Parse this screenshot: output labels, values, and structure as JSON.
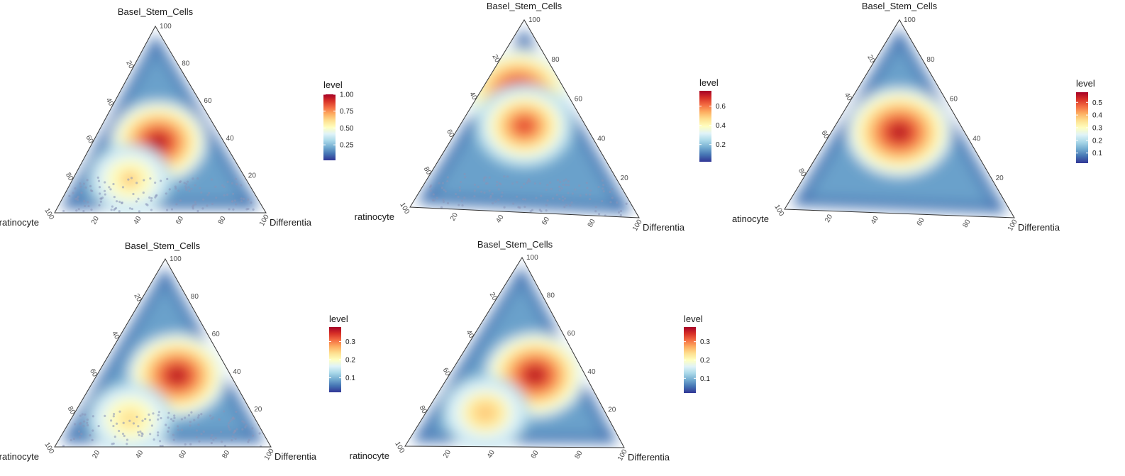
{
  "chart_data": [
    {
      "type": "ternary-density",
      "title": "Basel_Stem_Cells",
      "axes": {
        "top": "Basel_Stem_Cells",
        "left": "Keratinocyte",
        "right": "Differentiated"
      },
      "left_label_visible": "ratinocyte",
      "right_label_visible": "Differentia",
      "ticks": [
        20,
        40,
        60,
        80,
        100
      ],
      "legend": {
        "title": "level",
        "range": [
          0.02,
          1.0
        ],
        "ticks": [
          0.25,
          0.5,
          0.75,
          1.0
        ],
        "tick_labels": [
          "0.25",
          "0.50",
          "0.75",
          "1.00"
        ]
      },
      "peaks": [
        {
          "bottom_pct": 50,
          "top_pct": 38,
          "level": 1.0
        },
        {
          "bottom_pct": 33,
          "top_pct": 18,
          "level": 0.55
        }
      ],
      "scatter": true
    },
    {
      "type": "ternary-density",
      "title": "Basel_Stem_Cells",
      "axes": {
        "top": "Basel_Stem_Cells",
        "left": "Keratinocyte",
        "right": "Differentiated"
      },
      "left_label_visible": "ratinocyte",
      "right_label_visible": "Differentia",
      "ticks": [
        20,
        40,
        60,
        80,
        100
      ],
      "legend": {
        "title": "level",
        "range": [
          0.02,
          0.76
        ],
        "ticks": [
          0.2,
          0.4,
          0.6
        ],
        "tick_labels": [
          "0.2",
          "0.4",
          "0.6"
        ]
      },
      "peaks": [
        {
          "bottom_pct": 43,
          "top_pct": 62,
          "level": 0.76
        },
        {
          "bottom_pct": 50,
          "top_pct": 45,
          "level": 0.62
        }
      ],
      "scatter": true
    },
    {
      "type": "ternary-density",
      "title": "Basel_Stem_Cells",
      "axes": {
        "top": "Basel_Stem_Cells",
        "left": "Keratinocyte",
        "right": "Differentiated"
      },
      "left_label_visible": "atinocyte",
      "right_label_visible": "Differentia",
      "ticks": [
        20,
        40,
        60,
        80,
        100
      ],
      "legend": {
        "title": "level",
        "range": [
          0.02,
          0.58
        ],
        "ticks": [
          0.1,
          0.2,
          0.3,
          0.4,
          0.5
        ],
        "tick_labels": [
          "0.1",
          "0.2",
          "0.3",
          "0.4",
          "0.5"
        ]
      },
      "peaks": [
        {
          "bottom_pct": 50,
          "top_pct": 42,
          "level": 0.58
        }
      ],
      "scatter": false
    },
    {
      "type": "ternary-density",
      "title": "Basel_Stem_Cells",
      "axes": {
        "top": "Basel_Stem_Cells",
        "left": "Keratinocyte",
        "right": "Differentiated"
      },
      "left_label_visible": "ratinocyte",
      "right_label_visible": "Differentia",
      "ticks": [
        20,
        40,
        60,
        80,
        100
      ],
      "legend": {
        "title": "level",
        "range": [
          0.02,
          0.38
        ],
        "ticks": [
          0.1,
          0.2,
          0.3
        ],
        "tick_labels": [
          "0.1",
          "0.2",
          "0.3"
        ]
      },
      "peaks": [
        {
          "bottom_pct": 60,
          "top_pct": 38,
          "level": 0.38
        },
        {
          "bottom_pct": 32,
          "top_pct": 15,
          "level": 0.2
        }
      ],
      "scatter": true
    },
    {
      "type": "ternary-density",
      "title": "Basel_Stem_Cells",
      "axes": {
        "top": "Basel_Stem_Cells",
        "left": "Keratinocyte",
        "right": "Differentiated"
      },
      "left_label_visible": "ratinocyte",
      "right_label_visible": "Differentia",
      "ticks": [
        20,
        40,
        60,
        80,
        100
      ],
      "legend": {
        "title": "level",
        "range": [
          0.02,
          0.38
        ],
        "ticks": [
          0.1,
          0.2,
          0.3
        ],
        "tick_labels": [
          "0.1",
          "0.2",
          "0.3"
        ]
      },
      "peaks": [
        {
          "bottom_pct": 63,
          "top_pct": 38,
          "level": 0.38
        },
        {
          "bottom_pct": 33,
          "top_pct": 18,
          "level": 0.22
        }
      ],
      "scatter": false
    }
  ],
  "colors": {
    "axis": "#333333",
    "tick_text": "#4d4d4d",
    "scale": [
      "#313695",
      "#4575b4",
      "#74add1",
      "#abd9e9",
      "#e0f3f8",
      "#ffffbf",
      "#fee090",
      "#fdae61",
      "#f46d43",
      "#d73027",
      "#a50026"
    ]
  }
}
